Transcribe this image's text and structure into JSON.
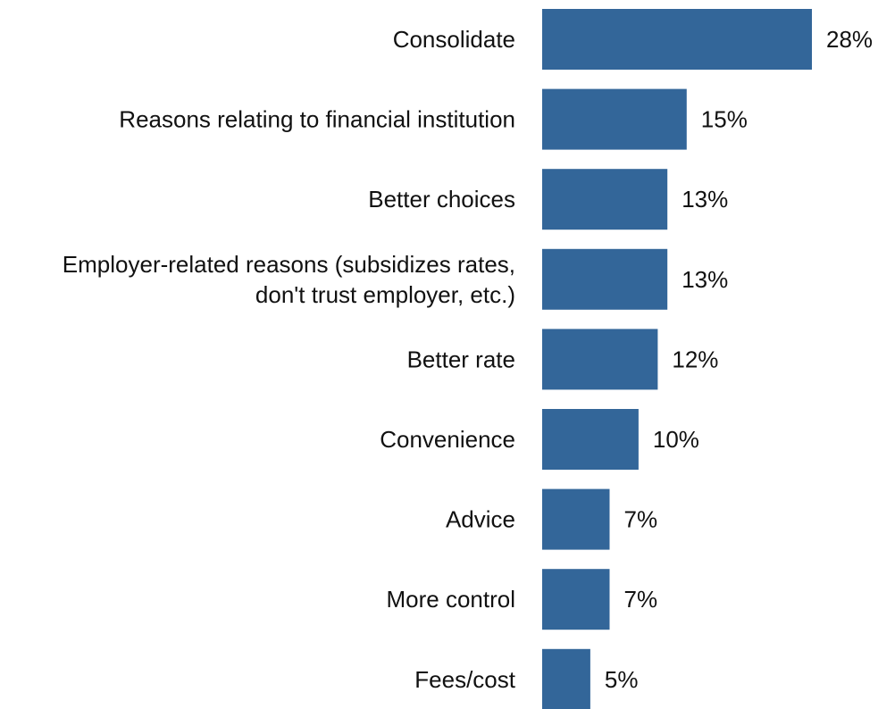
{
  "chart_data": {
    "type": "bar",
    "orientation": "horizontal",
    "categories": [
      [
        "Consolidate"
      ],
      [
        "Reasons relating to financial institution"
      ],
      [
        "Better choices"
      ],
      [
        "Employer-related reasons (subsidizes rates,",
        "don't trust employer, etc.)"
      ],
      [
        "Better rate"
      ],
      [
        "Convenience"
      ],
      [
        "Advice"
      ],
      [
        "More control"
      ],
      [
        "Fees/cost"
      ]
    ],
    "values": [
      28,
      15,
      13,
      13,
      12,
      10,
      7,
      7,
      5
    ],
    "value_labels": [
      "28%",
      "15%",
      "13%",
      "13%",
      "12%",
      "10%",
      "7%",
      "7%",
      "5%"
    ],
    "bar_color": "#336699",
    "xlim": [
      0,
      28
    ],
    "grid": false,
    "legend": "none"
  }
}
